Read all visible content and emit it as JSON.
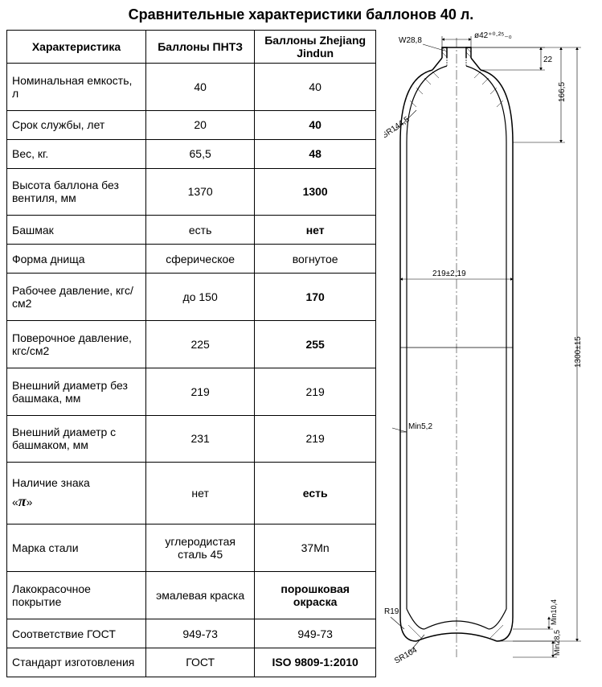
{
  "title": "Сравнительные  характеристики  баллонов  40 л.",
  "table": {
    "headers": [
      "Характеристика",
      "Баллоны ПНТЗ",
      "Баллоны Zhejiang Jindun"
    ],
    "rows": [
      {
        "label": "Номинальная емкость, л",
        "c1": "40",
        "c2": "40",
        "bold2": false
      },
      {
        "label": "Срок службы, лет",
        "c1": "20",
        "c2": "40",
        "bold2": true
      },
      {
        "label": "Вес, кг.",
        "c1": "65,5",
        "c2": "48",
        "bold2": true
      },
      {
        "label": "Высота баллона без вентиля, мм",
        "c1": "1370",
        "c2": "1300",
        "bold2": true
      },
      {
        "label": "Башмак",
        "c1": "есть",
        "c2": "нет",
        "bold2": true
      },
      {
        "label": "Форма днища",
        "c1": "сферическое",
        "c2": "вогнутое",
        "bold2": false
      },
      {
        "label": "Рабочее давление, кгс/см2",
        "c1": "до 150",
        "c2": "170",
        "bold2": true
      },
      {
        "label": "Поверочное давление, кгс/см2",
        "c1": "225",
        "c2": "255",
        "bold2": true
      },
      {
        "label": "Внешний диаметр без башмака, мм",
        "c1": "219",
        "c2": "219",
        "bold2": false
      },
      {
        "label": "Внешний диаметр с башмаком, мм",
        "c1": "231",
        "c2": "219",
        "bold2": false
      },
      {
        "label": "Наличие знака «π»",
        "c1": "нет",
        "c2": "есть",
        "bold2": true,
        "pi": true
      },
      {
        "label": "Марка стали",
        "c1": "углеродистая сталь 45",
        "c2": "37Mn",
        "bold2": false
      },
      {
        "label": "Лакокрасочное покрытие",
        "c1": "эмалевая краска",
        "c2": "порошковая окраска",
        "bold2": true
      },
      {
        "label": "Соответствие ГОСТ",
        "c1": "949-73",
        "c2": "949-73",
        "bold2": false
      },
      {
        "label": "Стандарт изготовления",
        "c1": "ГОСТ",
        "c2": "ISO 9809-1:2010",
        "bold2": true
      }
    ]
  },
  "diagram": {
    "labels": {
      "thread": "W28,8",
      "neck_dia": "ø42⁺⁰·²⁵₋₀",
      "neck_h": "22",
      "shoulder_h": "166,5",
      "shoulder_r": "SR144,5",
      "body_dia": "219±2,19",
      "wall": "Min5,2",
      "total_h": "1300±15",
      "bottom_r": "R19",
      "bottom_sr": "SR104",
      "bottom_min1": "Min10,4",
      "bottom_min2": "Min28,5"
    },
    "stroke": "#000000",
    "thin_stroke": 0.7,
    "outline_stroke": 1.5
  }
}
